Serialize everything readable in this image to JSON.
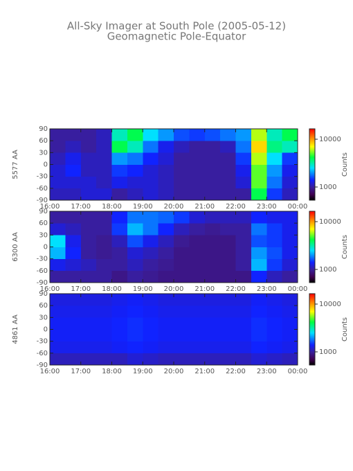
{
  "title": "All-Sky Imager at South Pole (2005-05-12)",
  "subtitle": "Geomagnetic Pole-Equator",
  "chart_data": [
    {
      "type": "heatmap",
      "ylabel": "5577 AA",
      "colorbar_label": "Counts",
      "xbins": [
        16,
        16.5,
        17,
        17.5,
        18,
        18.5,
        19,
        19.5,
        20,
        20.5,
        21,
        21.5,
        22,
        22.5,
        23,
        23.5,
        24
      ],
      "ybins": [
        -90,
        -60,
        -30,
        0,
        30,
        60,
        90
      ],
      "values": [
        [
          1100,
          1100,
          1200,
          1200,
          1000,
          1100,
          1200,
          1100,
          1000,
          1000,
          1000,
          1000,
          1000,
          4000,
          1500,
          1100
        ],
        [
          1200,
          1200,
          1200,
          1100,
          1300,
          1200,
          1200,
          1100,
          1000,
          1000,
          1000,
          1000,
          1200,
          5000,
          1800,
          1200
        ],
        [
          1200,
          1400,
          1100,
          1100,
          1500,
          1400,
          1200,
          1100,
          1000,
          1000,
          1000,
          1000,
          1300,
          5000,
          2000,
          1300
        ],
        [
          1100,
          1300,
          1100,
          1100,
          2000,
          1800,
          1400,
          1200,
          1000,
          1000,
          1000,
          1000,
          1500,
          6000,
          2500,
          1500
        ],
        [
          1000,
          1100,
          1000,
          1100,
          4000,
          3000,
          1800,
          1300,
          1100,
          1000,
          1000,
          1100,
          1800,
          8000,
          3500,
          3000
        ],
        [
          1000,
          1000,
          1000,
          1100,
          3000,
          4000,
          2500,
          2000,
          1600,
          1500,
          1600,
          1800,
          2000,
          6000,
          3000,
          4000
        ]
      ],
      "xlim": [
        16,
        24
      ],
      "xticks": [
        {
          "value": 16,
          "label": "16:00"
        },
        {
          "value": 17,
          "label": "17:00"
        },
        {
          "value": 18,
          "label": "18:00"
        },
        {
          "value": 19,
          "label": "19:00"
        },
        {
          "value": 20,
          "label": "20:00"
        },
        {
          "value": 21,
          "label": "21:00"
        },
        {
          "value": 22,
          "label": "22:00"
        },
        {
          "value": 23,
          "label": "23:00"
        },
        {
          "value": 24,
          "label": "00:00"
        }
      ],
      "ylim": [
        -90,
        90
      ],
      "yticks": [
        -90,
        -60,
        -30,
        0,
        30,
        60,
        90
      ],
      "zlim": [
        530,
        16500
      ],
      "zticks": [
        1000,
        10000
      ],
      "zscale": "log"
    },
    {
      "type": "heatmap",
      "ylabel": "6300 AA",
      "colorbar_label": "Counts",
      "xbins": [
        16,
        16.5,
        17,
        17.5,
        18,
        18.5,
        19,
        19.5,
        20,
        20.5,
        21,
        21.5,
        22,
        22.5,
        23,
        23.5,
        24
      ],
      "ybins": [
        -90,
        -60,
        -30,
        0,
        30,
        60,
        90
      ],
      "values": [
        [
          1000,
          1000,
          1000,
          1000,
          900,
          1000,
          950,
          900,
          900,
          900,
          900,
          900,
          900,
          1400,
          1100,
          1000
        ],
        [
          1300,
          1200,
          1100,
          1000,
          1000,
          1100,
          1000,
          950,
          900,
          900,
          900,
          900,
          1000,
          2200,
          1500,
          1200
        ],
        [
          2200,
          1400,
          1000,
          950,
          1000,
          1200,
          1100,
          1000,
          900,
          900,
          900,
          900,
          1000,
          2000,
          1600,
          1300
        ],
        [
          2500,
          1300,
          1000,
          950,
          1100,
          1600,
          1300,
          1100,
          950,
          900,
          900,
          900,
          1000,
          1600,
          1500,
          1300
        ],
        [
          1200,
          1100,
          1000,
          1000,
          1500,
          2200,
          1800,
          1400,
          1100,
          1000,
          950,
          1000,
          1000,
          1800,
          1500,
          1300
        ],
        [
          1000,
          1000,
          1000,
          1000,
          1400,
          1800,
          1800,
          1700,
          1500,
          1200,
          1100,
          1100,
          1100,
          1400,
          1300,
          1300
        ]
      ],
      "xlim": [
        16,
        24
      ],
      "xticks": [
        {
          "value": 16,
          "label": "16:00"
        },
        {
          "value": 17,
          "label": "17:00"
        },
        {
          "value": 18,
          "label": "18:00"
        },
        {
          "value": 19,
          "label": "19:00"
        },
        {
          "value": 20,
          "label": "20:00"
        },
        {
          "value": 21,
          "label": "21:00"
        },
        {
          "value": 22,
          "label": "22:00"
        },
        {
          "value": 23,
          "label": "23:00"
        },
        {
          "value": 24,
          "label": "00:00"
        }
      ],
      "ylim": [
        -90,
        90
      ],
      "yticks": [
        -90,
        -60,
        -30,
        0,
        30,
        60,
        90
      ],
      "zlim": [
        530,
        16500
      ],
      "zticks": [
        1000,
        10000
      ],
      "zscale": "log"
    },
    {
      "type": "heatmap",
      "ylabel": "4861 AA",
      "colorbar_label": "Counts",
      "xbins": [
        16,
        16.5,
        17,
        17.5,
        18,
        18.5,
        19,
        19.5,
        20,
        20.5,
        21,
        21.5,
        22,
        22.5,
        23,
        23.5,
        24
      ],
      "ybins": [
        -90,
        -60,
        -30,
        0,
        30,
        60,
        90
      ],
      "values": [
        [
          1100,
          1100,
          1100,
          1100,
          1100,
          1200,
          1150,
          1100,
          1100,
          1100,
          1100,
          1100,
          1100,
          1200,
          1150,
          1100
        ],
        [
          1300,
          1300,
          1300,
          1300,
          1350,
          1400,
          1350,
          1300,
          1300,
          1300,
          1300,
          1300,
          1300,
          1400,
          1350,
          1300
        ],
        [
          1350,
          1350,
          1350,
          1350,
          1400,
          1450,
          1400,
          1350,
          1350,
          1350,
          1350,
          1350,
          1350,
          1450,
          1400,
          1350
        ],
        [
          1350,
          1350,
          1350,
          1350,
          1400,
          1450,
          1400,
          1350,
          1350,
          1350,
          1350,
          1350,
          1350,
          1450,
          1400,
          1350
        ],
        [
          1300,
          1300,
          1300,
          1300,
          1350,
          1400,
          1350,
          1300,
          1300,
          1300,
          1300,
          1300,
          1300,
          1400,
          1350,
          1300
        ],
        [
          1250,
          1250,
          1250,
          1250,
          1300,
          1350,
          1300,
          1250,
          1250,
          1250,
          1250,
          1250,
          1250,
          1350,
          1300,
          1250
        ]
      ],
      "xlim": [
        16,
        24
      ],
      "xticks": [
        {
          "value": 16,
          "label": "16:00"
        },
        {
          "value": 17,
          "label": "17:00"
        },
        {
          "value": 18,
          "label": "18:00"
        },
        {
          "value": 19,
          "label": "19:00"
        },
        {
          "value": 20,
          "label": "20:00"
        },
        {
          "value": 21,
          "label": "21:00"
        },
        {
          "value": 22,
          "label": "22:00"
        },
        {
          "value": 23,
          "label": "23:00"
        },
        {
          "value": 24,
          "label": "00:00"
        }
      ],
      "ylim": [
        -90,
        90
      ],
      "yticks": [
        -90,
        -60,
        -30,
        0,
        30,
        60,
        90
      ],
      "zlim": [
        530,
        16500
      ],
      "zticks": [
        1000,
        10000
      ],
      "zscale": "log"
    }
  ]
}
